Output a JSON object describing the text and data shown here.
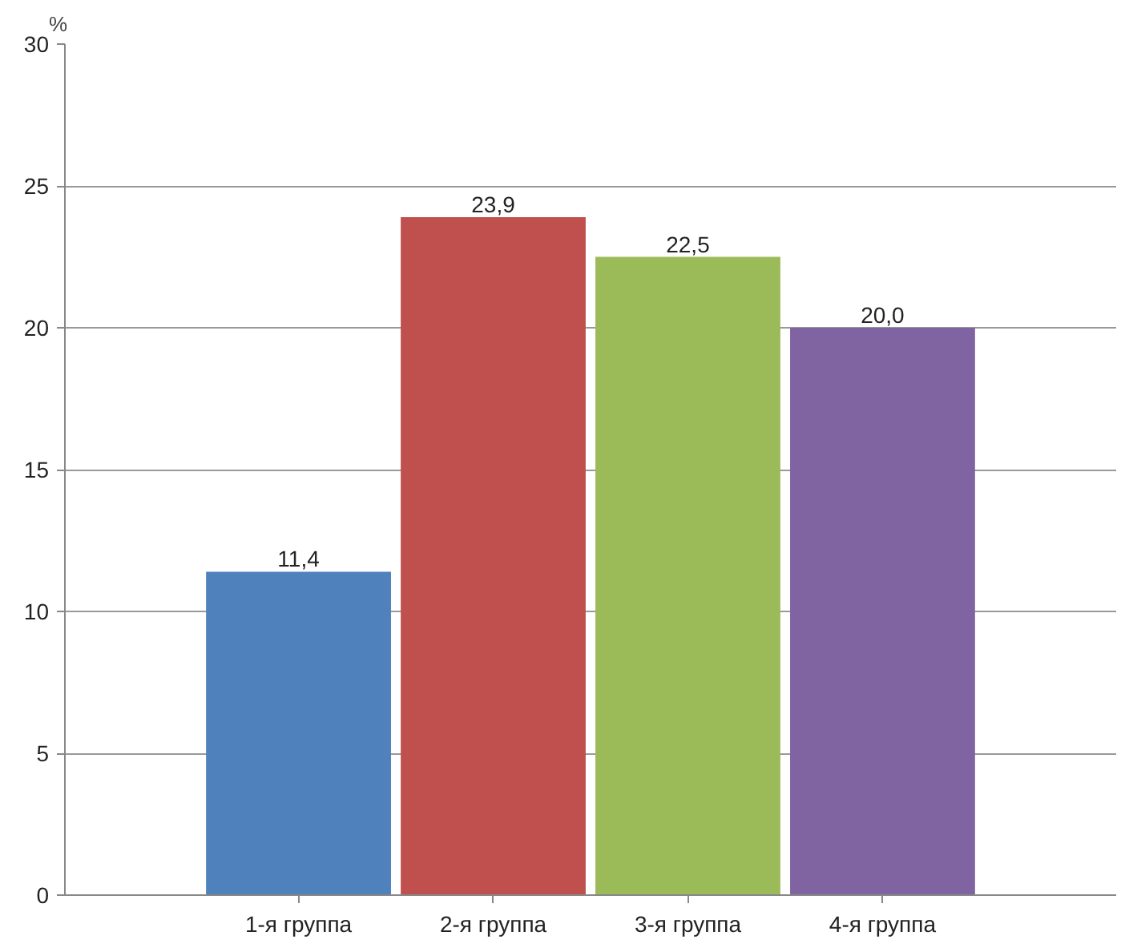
{
  "chart_data": {
    "type": "bar",
    "ylabel": "%",
    "categories": [
      "1-я группа",
      "2-я группа",
      "3-я группа",
      "4-я группа"
    ],
    "values": [
      11.4,
      23.9,
      22.5,
      20.0
    ],
    "colors": [
      "#4f81bd",
      "#c0504d",
      "#9bbb59",
      "#8064a2"
    ],
    "value_labels": [
      "11,4",
      "23,9",
      "22,5",
      "20,0"
    ],
    "ylim": [
      0,
      30
    ],
    "yticks": [
      0,
      5,
      10,
      15,
      20,
      25,
      30
    ],
    "grid": "y"
  }
}
